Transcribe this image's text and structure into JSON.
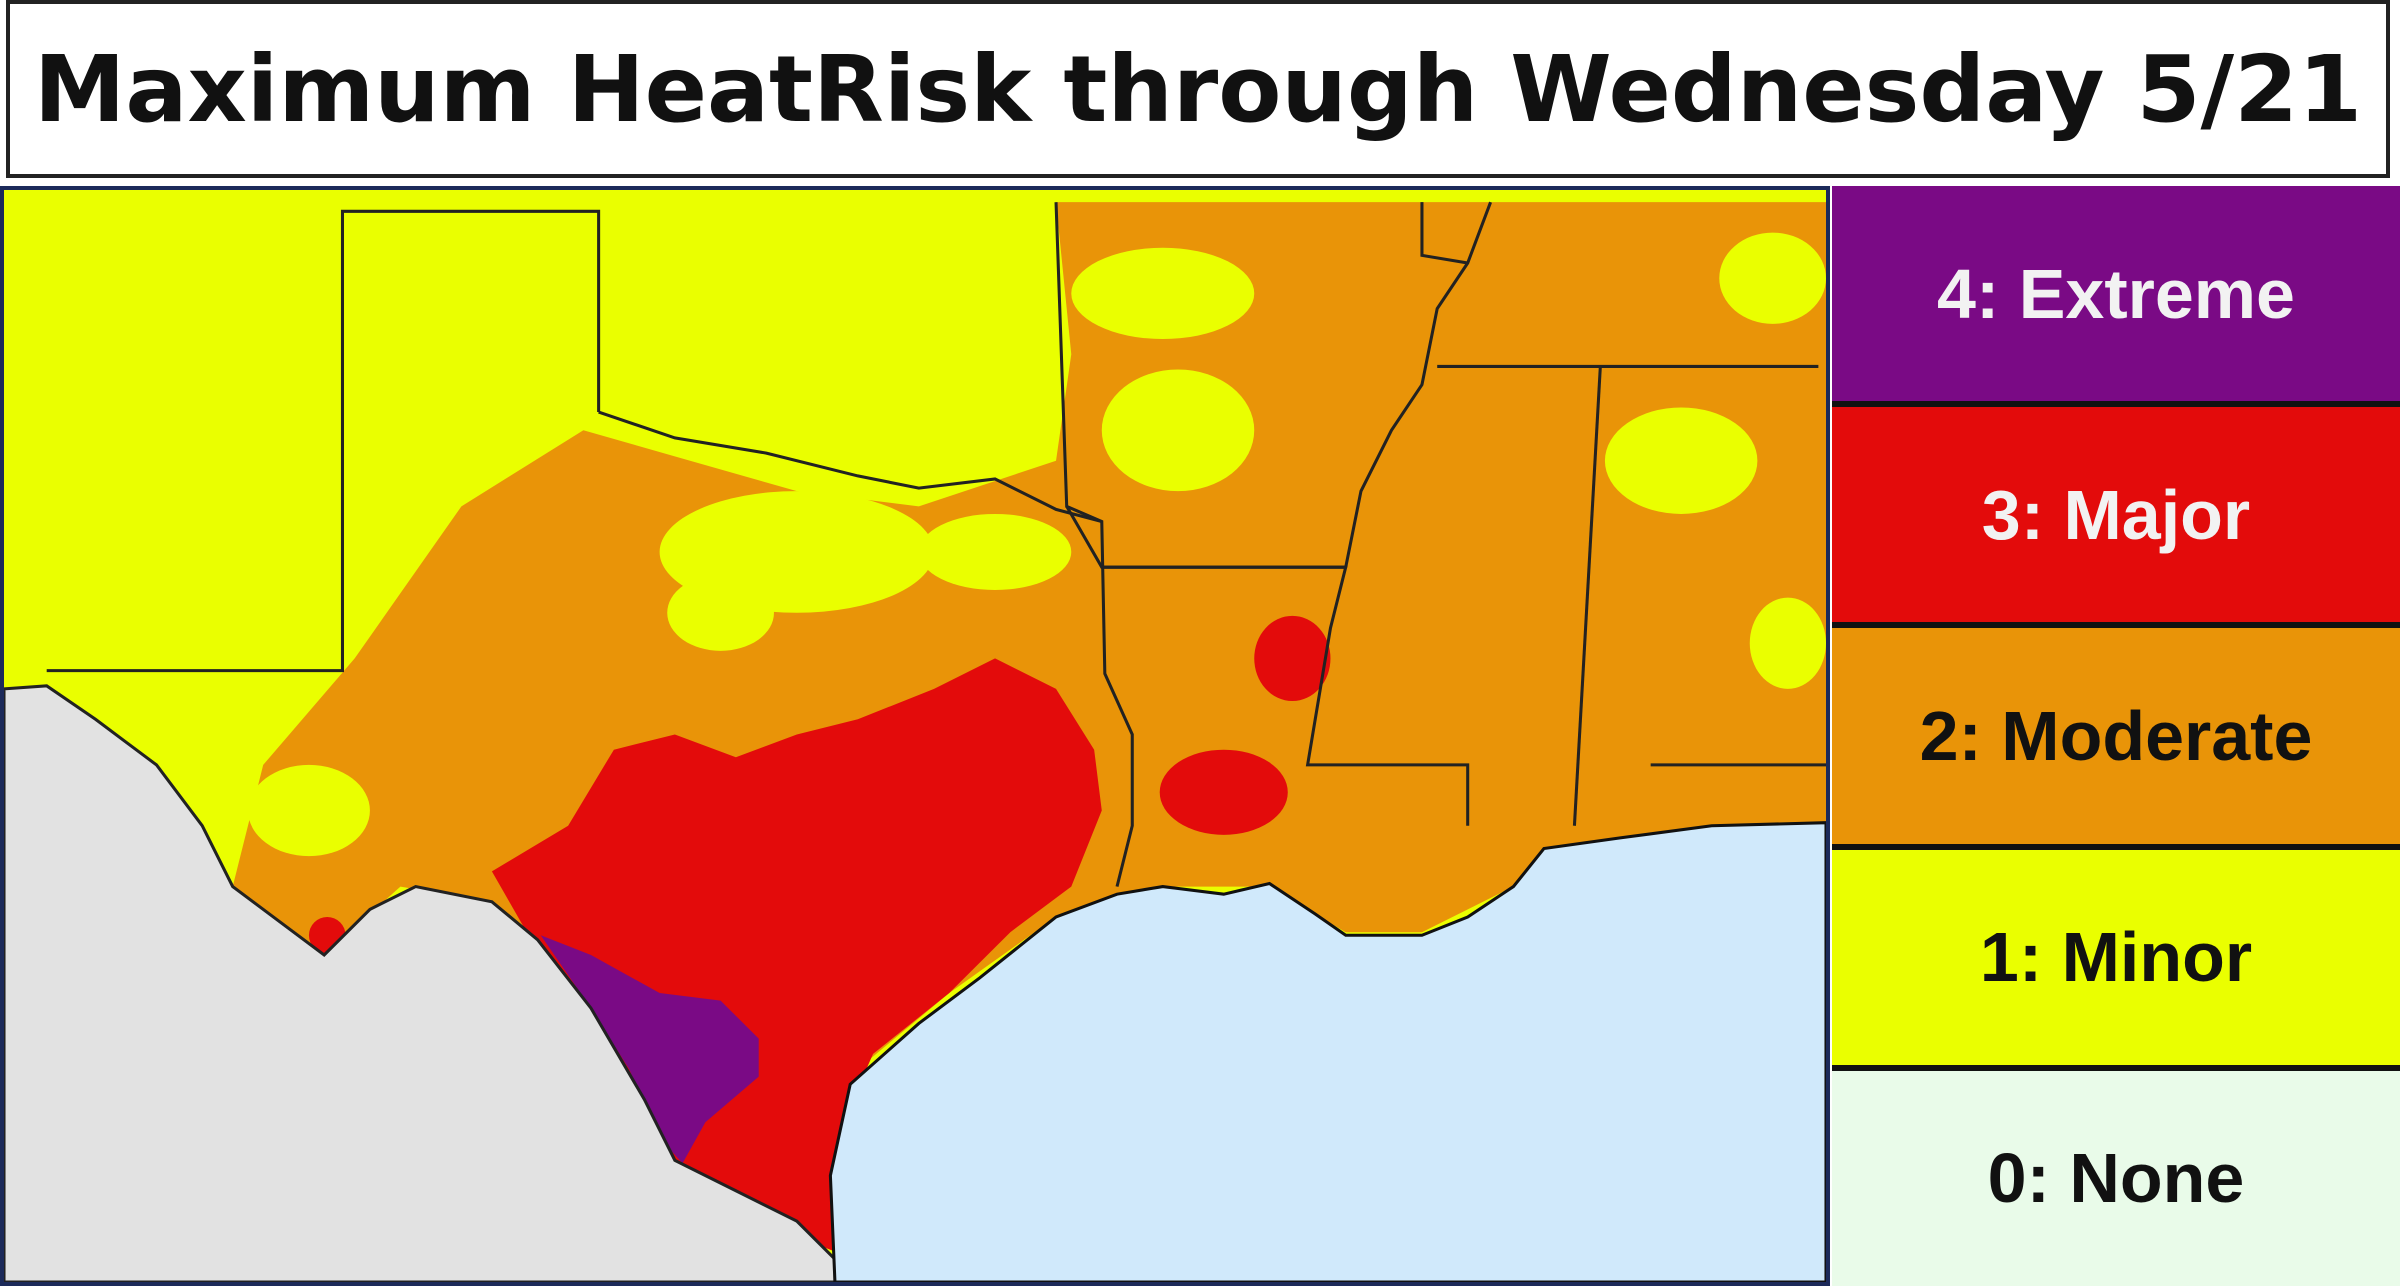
{
  "title": "Maximum HeatRisk through Wednesday 5/21",
  "legend": [
    {
      "label": "4: Extreme",
      "color": "#7a0a85",
      "text_color": "#f2f2f2"
    },
    {
      "label": "3: Major",
      "color": "#e30b0b",
      "text_color": "#f2f2f2"
    },
    {
      "label": "2: Moderate",
      "color": "#e99408",
      "text_color": "#111111"
    },
    {
      "label": "1: Minor",
      "color": "#eaff00",
      "text_color": "#111111"
    },
    {
      "label": "0: None",
      "color": "#e9fbe9",
      "text_color": "#111111"
    }
  ]
}
